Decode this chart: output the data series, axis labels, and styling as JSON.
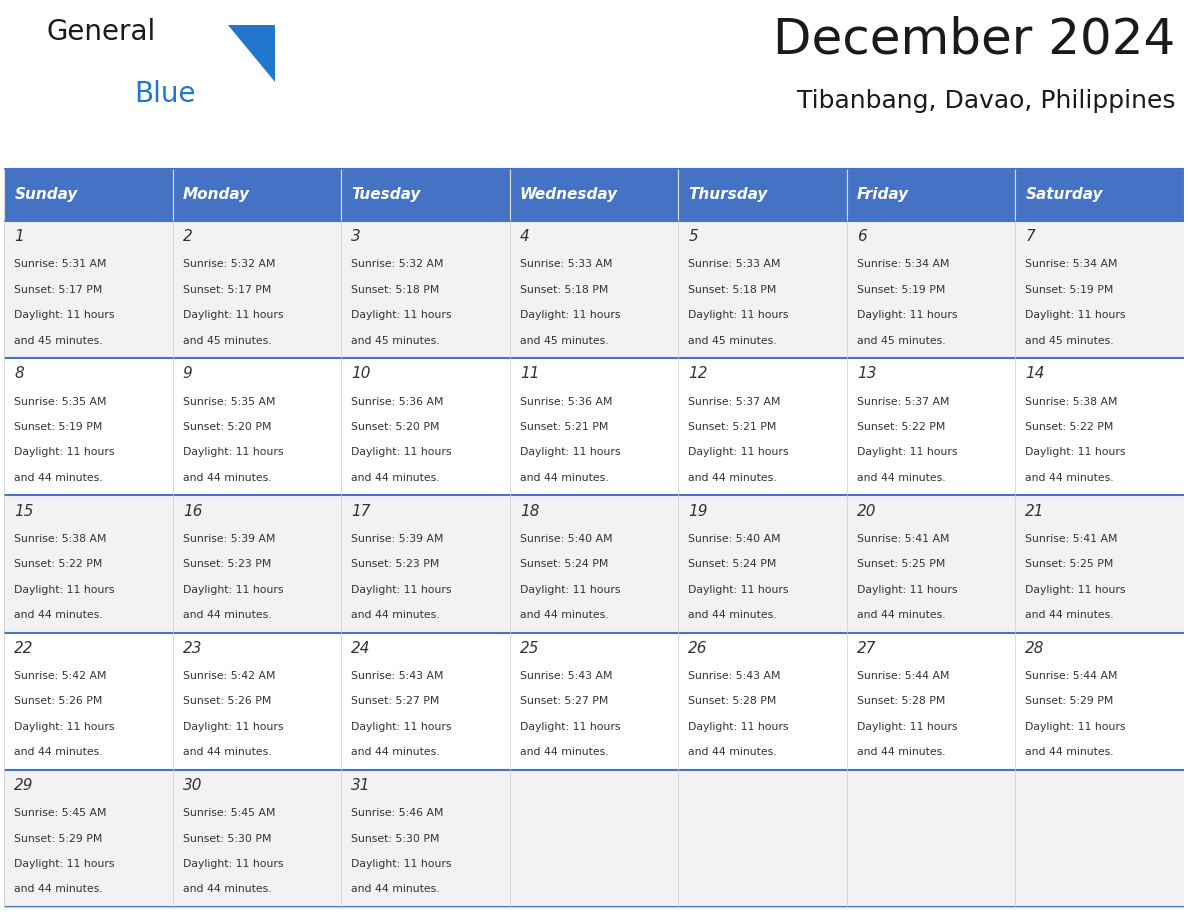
{
  "title": "December 2024",
  "subtitle": "Tibanbang, Davao, Philippines",
  "header_bg_color": "#4472C4",
  "header_text_color": "#FFFFFF",
  "day_names": [
    "Sunday",
    "Monday",
    "Tuesday",
    "Wednesday",
    "Thursday",
    "Friday",
    "Saturday"
  ],
  "row_bg_even": "#F2F2F2",
  "row_bg_odd": "#FFFFFF",
  "cell_text_color": "#333333",
  "days": [
    {
      "day": 1,
      "col": 0,
      "row": 0,
      "sunrise": "5:31 AM",
      "sunset": "5:17 PM",
      "daylight": "11 hours and 45 minutes."
    },
    {
      "day": 2,
      "col": 1,
      "row": 0,
      "sunrise": "5:32 AM",
      "sunset": "5:17 PM",
      "daylight": "11 hours and 45 minutes."
    },
    {
      "day": 3,
      "col": 2,
      "row": 0,
      "sunrise": "5:32 AM",
      "sunset": "5:18 PM",
      "daylight": "11 hours and 45 minutes."
    },
    {
      "day": 4,
      "col": 3,
      "row": 0,
      "sunrise": "5:33 AM",
      "sunset": "5:18 PM",
      "daylight": "11 hours and 45 minutes."
    },
    {
      "day": 5,
      "col": 4,
      "row": 0,
      "sunrise": "5:33 AM",
      "sunset": "5:18 PM",
      "daylight": "11 hours and 45 minutes."
    },
    {
      "day": 6,
      "col": 5,
      "row": 0,
      "sunrise": "5:34 AM",
      "sunset": "5:19 PM",
      "daylight": "11 hours and 45 minutes."
    },
    {
      "day": 7,
      "col": 6,
      "row": 0,
      "sunrise": "5:34 AM",
      "sunset": "5:19 PM",
      "daylight": "11 hours and 45 minutes."
    },
    {
      "day": 8,
      "col": 0,
      "row": 1,
      "sunrise": "5:35 AM",
      "sunset": "5:19 PM",
      "daylight": "11 hours and 44 minutes."
    },
    {
      "day": 9,
      "col": 1,
      "row": 1,
      "sunrise": "5:35 AM",
      "sunset": "5:20 PM",
      "daylight": "11 hours and 44 minutes."
    },
    {
      "day": 10,
      "col": 2,
      "row": 1,
      "sunrise": "5:36 AM",
      "sunset": "5:20 PM",
      "daylight": "11 hours and 44 minutes."
    },
    {
      "day": 11,
      "col": 3,
      "row": 1,
      "sunrise": "5:36 AM",
      "sunset": "5:21 PM",
      "daylight": "11 hours and 44 minutes."
    },
    {
      "day": 12,
      "col": 4,
      "row": 1,
      "sunrise": "5:37 AM",
      "sunset": "5:21 PM",
      "daylight": "11 hours and 44 minutes."
    },
    {
      "day": 13,
      "col": 5,
      "row": 1,
      "sunrise": "5:37 AM",
      "sunset": "5:22 PM",
      "daylight": "11 hours and 44 minutes."
    },
    {
      "day": 14,
      "col": 6,
      "row": 1,
      "sunrise": "5:38 AM",
      "sunset": "5:22 PM",
      "daylight": "11 hours and 44 minutes."
    },
    {
      "day": 15,
      "col": 0,
      "row": 2,
      "sunrise": "5:38 AM",
      "sunset": "5:22 PM",
      "daylight": "11 hours and 44 minutes."
    },
    {
      "day": 16,
      "col": 1,
      "row": 2,
      "sunrise": "5:39 AM",
      "sunset": "5:23 PM",
      "daylight": "11 hours and 44 minutes."
    },
    {
      "day": 17,
      "col": 2,
      "row": 2,
      "sunrise": "5:39 AM",
      "sunset": "5:23 PM",
      "daylight": "11 hours and 44 minutes."
    },
    {
      "day": 18,
      "col": 3,
      "row": 2,
      "sunrise": "5:40 AM",
      "sunset": "5:24 PM",
      "daylight": "11 hours and 44 minutes."
    },
    {
      "day": 19,
      "col": 4,
      "row": 2,
      "sunrise": "5:40 AM",
      "sunset": "5:24 PM",
      "daylight": "11 hours and 44 minutes."
    },
    {
      "day": 20,
      "col": 5,
      "row": 2,
      "sunrise": "5:41 AM",
      "sunset": "5:25 PM",
      "daylight": "11 hours and 44 minutes."
    },
    {
      "day": 21,
      "col": 6,
      "row": 2,
      "sunrise": "5:41 AM",
      "sunset": "5:25 PM",
      "daylight": "11 hours and 44 minutes."
    },
    {
      "day": 22,
      "col": 0,
      "row": 3,
      "sunrise": "5:42 AM",
      "sunset": "5:26 PM",
      "daylight": "11 hours and 44 minutes."
    },
    {
      "day": 23,
      "col": 1,
      "row": 3,
      "sunrise": "5:42 AM",
      "sunset": "5:26 PM",
      "daylight": "11 hours and 44 minutes."
    },
    {
      "day": 24,
      "col": 2,
      "row": 3,
      "sunrise": "5:43 AM",
      "sunset": "5:27 PM",
      "daylight": "11 hours and 44 minutes."
    },
    {
      "day": 25,
      "col": 3,
      "row": 3,
      "sunrise": "5:43 AM",
      "sunset": "5:27 PM",
      "daylight": "11 hours and 44 minutes."
    },
    {
      "day": 26,
      "col": 4,
      "row": 3,
      "sunrise": "5:43 AM",
      "sunset": "5:28 PM",
      "daylight": "11 hours and 44 minutes."
    },
    {
      "day": 27,
      "col": 5,
      "row": 3,
      "sunrise": "5:44 AM",
      "sunset": "5:28 PM",
      "daylight": "11 hours and 44 minutes."
    },
    {
      "day": 28,
      "col": 6,
      "row": 3,
      "sunrise": "5:44 AM",
      "sunset": "5:29 PM",
      "daylight": "11 hours and 44 minutes."
    },
    {
      "day": 29,
      "col": 0,
      "row": 4,
      "sunrise": "5:45 AM",
      "sunset": "5:29 PM",
      "daylight": "11 hours and 44 minutes."
    },
    {
      "day": 30,
      "col": 1,
      "row": 4,
      "sunrise": "5:45 AM",
      "sunset": "5:30 PM",
      "daylight": "11 hours and 44 minutes."
    },
    {
      "day": 31,
      "col": 2,
      "row": 4,
      "sunrise": "5:46 AM",
      "sunset": "5:30 PM",
      "daylight": "11 hours and 44 minutes."
    }
  ],
  "num_rows": 5,
  "num_cols": 7,
  "logo_text1": "General",
  "logo_text2": "Blue",
  "logo_text1_color": "#1a1a1a",
  "logo_text2_color": "#2277CC",
  "logo_triangle_color": "#2277CC"
}
